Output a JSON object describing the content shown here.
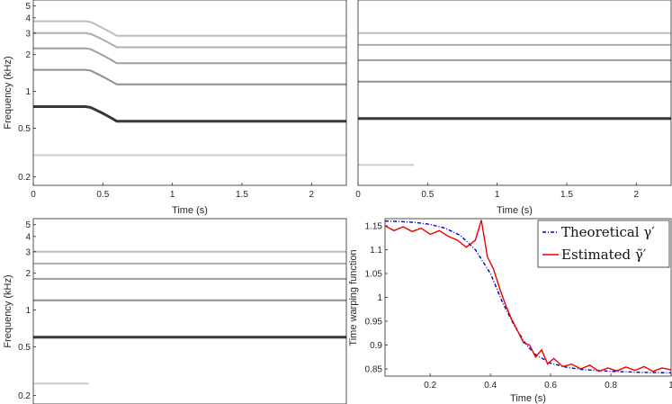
{
  "chart_data": [
    {
      "type": "heatmap",
      "panel": "top-left",
      "xlabel": "Time (s)",
      "ylabel": "Frequency (kHz)",
      "xlim": [
        0,
        2.25
      ],
      "ylim": [
        0.17,
        5.6
      ],
      "y_scale": "log",
      "x_ticks": [
        0,
        0.5,
        1,
        1.5,
        2
      ],
      "x_tick_labels": [
        "0",
        "0.5",
        "1",
        "1.5",
        "2"
      ],
      "y_ticks": [
        0.2,
        0.5,
        1,
        2,
        3,
        4,
        5
      ],
      "y_tick_labels": [
        "0.2",
        "0.5",
        "1",
        "2",
        "3",
        "4",
        "5"
      ],
      "colormap": "grayscale (dark = high energy)",
      "harmonic_tracks_khz": [
        {
          "t": [
            0,
            0.4,
            0.6,
            2.25
          ],
          "f": [
            0.75,
            0.75,
            0.57,
            0.57
          ]
        },
        {
          "t": [
            0,
            0.4,
            0.6,
            2.25
          ],
          "f": [
            1.5,
            1.5,
            1.14,
            1.14
          ]
        },
        {
          "t": [
            0,
            0.4,
            0.6,
            2.25
          ],
          "f": [
            2.25,
            2.25,
            1.7,
            1.7
          ]
        },
        {
          "t": [
            0,
            0.4,
            0.6,
            2.25
          ],
          "f": [
            3.0,
            3.0,
            2.3,
            2.3
          ]
        },
        {
          "t": [
            0,
            0.4,
            0.6,
            2.25
          ],
          "f": [
            3.75,
            3.75,
            2.85,
            2.85
          ]
        },
        {
          "t": [
            0,
            0.4,
            0.6,
            2.25
          ],
          "f": [
            0.3,
            0.3,
            0.3,
            0.3
          ]
        }
      ]
    },
    {
      "type": "heatmap",
      "panel": "top-right",
      "xlabel": "Time (s)",
      "ylabel": "",
      "xlim": [
        0,
        2.25
      ],
      "ylim": [
        0.17,
        5.6
      ],
      "y_scale": "log",
      "x_ticks": [
        0,
        0.5,
        1,
        1.5,
        2
      ],
      "x_tick_labels": [
        "0",
        "0.5",
        "1",
        "1.5",
        "2"
      ],
      "colormap": "grayscale (dark = high energy)",
      "harmonic_tracks_khz": [
        {
          "t": [
            0,
            2.25
          ],
          "f": [
            0.6,
            0.6
          ]
        },
        {
          "t": [
            0,
            2.25
          ],
          "f": [
            1.2,
            1.2
          ]
        },
        {
          "t": [
            0,
            2.25
          ],
          "f": [
            1.8,
            1.8
          ]
        },
        {
          "t": [
            0,
            2.25
          ],
          "f": [
            2.4,
            2.4
          ]
        },
        {
          "t": [
            0,
            2.25
          ],
          "f": [
            3.0,
            3.0
          ]
        },
        {
          "t": [
            0,
            0.4
          ],
          "f": [
            0.25,
            0.25
          ]
        }
      ]
    },
    {
      "type": "heatmap",
      "panel": "bottom-left",
      "xlabel": "",
      "ylabel": "Frequency (kHz)",
      "xlim": [
        0,
        2.25
      ],
      "ylim": [
        0.17,
        5.6
      ],
      "y_scale": "log",
      "y_ticks": [
        0.2,
        0.5,
        1,
        2,
        3,
        4,
        5
      ],
      "y_tick_labels": [
        "0.2",
        "0.5",
        "1",
        "2",
        "3",
        "4",
        "5"
      ],
      "colormap": "grayscale (dark = high energy)",
      "harmonic_tracks_khz": [
        {
          "t": [
            0,
            2.25
          ],
          "f": [
            0.6,
            0.6
          ]
        },
        {
          "t": [
            0,
            2.25
          ],
          "f": [
            1.2,
            1.2
          ]
        },
        {
          "t": [
            0,
            2.25
          ],
          "f": [
            1.8,
            1.8
          ]
        },
        {
          "t": [
            0,
            2.25
          ],
          "f": [
            2.4,
            2.4
          ]
        },
        {
          "t": [
            0,
            2.25
          ],
          "f": [
            3.0,
            3.0
          ]
        },
        {
          "t": [
            0,
            0.4
          ],
          "f": [
            0.25,
            0.25
          ]
        }
      ]
    },
    {
      "type": "line",
      "panel": "bottom-right",
      "xlabel": "Time (s)",
      "ylabel": "Time warping function",
      "xlim": [
        0.05,
        1.0
      ],
      "ylim": [
        0.835,
        1.165
      ],
      "x_ticks": [
        0.2,
        0.4,
        0.6,
        0.8,
        1
      ],
      "x_tick_labels": [
        "0.2",
        "0.4",
        "0.6",
        "0.8",
        "1"
      ],
      "y_ticks": [
        0.85,
        0.9,
        0.95,
        1,
        1.05,
        1.1,
        1.15
      ],
      "y_tick_labels": [
        "0.85",
        "0.9",
        "0.95",
        "1",
        "1.05",
        "1.1",
        "1.15"
      ],
      "legend_position": "top-right",
      "series": [
        {
          "name": "Theoretical γ′",
          "color": "#0000cc",
          "style": "dash-dot",
          "x": [
            0.05,
            0.1,
            0.15,
            0.2,
            0.25,
            0.3,
            0.35,
            0.4,
            0.42,
            0.44,
            0.46,
            0.48,
            0.5,
            0.52,
            0.55,
            0.6,
            0.65,
            0.7,
            0.8,
            0.9,
            1.0
          ],
          "y": [
            1.16,
            1.159,
            1.157,
            1.153,
            1.145,
            1.13,
            1.1,
            1.05,
            1.02,
            0.99,
            0.965,
            0.94,
            0.92,
            0.9,
            0.88,
            0.862,
            0.854,
            0.849,
            0.845,
            0.843,
            0.842
          ]
        },
        {
          "name": "Estimated γ̃′",
          "color": "#ee0000",
          "style": "solid",
          "x": [
            0.05,
            0.08,
            0.11,
            0.14,
            0.17,
            0.2,
            0.23,
            0.26,
            0.29,
            0.32,
            0.35,
            0.37,
            0.39,
            0.41,
            0.43,
            0.45,
            0.47,
            0.49,
            0.51,
            0.53,
            0.55,
            0.57,
            0.59,
            0.61,
            0.64,
            0.67,
            0.7,
            0.73,
            0.76,
            0.79,
            0.82,
            0.85,
            0.88,
            0.91,
            0.94,
            0.97,
            1.0
          ],
          "y": [
            1.15,
            1.14,
            1.148,
            1.138,
            1.145,
            1.132,
            1.14,
            1.128,
            1.12,
            1.105,
            1.12,
            1.162,
            1.085,
            1.06,
            1.02,
            0.985,
            0.955,
            0.93,
            0.905,
            0.9,
            0.875,
            0.89,
            0.86,
            0.872,
            0.855,
            0.86,
            0.85,
            0.858,
            0.845,
            0.852,
            0.846,
            0.854,
            0.847,
            0.855,
            0.845,
            0.852,
            0.848
          ]
        }
      ]
    }
  ]
}
